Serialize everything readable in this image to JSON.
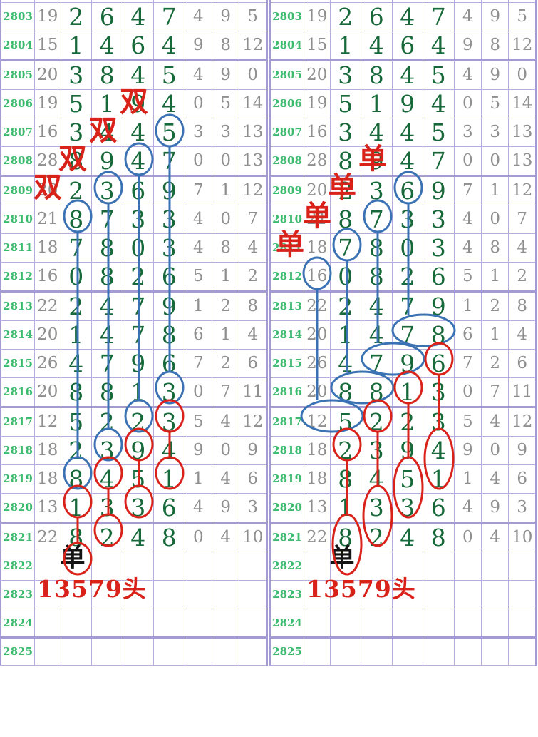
{
  "colors": {
    "grid": "#b6addc",
    "grid_thick": "#a49bd2",
    "period_green": "#3cba6e",
    "digit_green": "#17693a",
    "gray": "#8f8f8f",
    "red": "#d9231a",
    "blue": "#3a72b4",
    "black": "#141414"
  },
  "chart_data": {
    "type": "table",
    "columns": [
      "period",
      "sum",
      "digit1",
      "digit2",
      "digit3",
      "digit4",
      "tail1",
      "tail2",
      "tail3"
    ],
    "rows": [
      {
        "period": "2803",
        "sum": "19",
        "digits": [
          "2",
          "6",
          "4",
          "7"
        ],
        "tails": [
          "4",
          "9",
          "5"
        ]
      },
      {
        "period": "2804",
        "sum": "15",
        "digits": [
          "1",
          "4",
          "6",
          "4"
        ],
        "tails": [
          "9",
          "8",
          "12"
        ]
      },
      {
        "period": "2805",
        "sum": "20",
        "digits": [
          "3",
          "8",
          "4",
          "5"
        ],
        "tails": [
          "4",
          "9",
          "0"
        ]
      },
      {
        "period": "2806",
        "sum": "19",
        "digits": [
          "5",
          "1",
          "9",
          "4"
        ],
        "tails": [
          "0",
          "5",
          "14"
        ]
      },
      {
        "period": "2807",
        "sum": "16",
        "digits": [
          "3",
          "4",
          "4",
          "5"
        ],
        "tails": [
          "3",
          "3",
          "13"
        ]
      },
      {
        "period": "2808",
        "sum": "28",
        "digits": [
          "8",
          "9",
          "4",
          "7"
        ],
        "tails": [
          "0",
          "0",
          "13"
        ]
      },
      {
        "period": "2809",
        "sum": "20",
        "digits": [
          "2",
          "3",
          "6",
          "9"
        ],
        "tails": [
          "7",
          "1",
          "12"
        ]
      },
      {
        "period": "2810",
        "sum": "21",
        "digits": [
          "8",
          "7",
          "3",
          "3"
        ],
        "tails": [
          "4",
          "0",
          "7"
        ]
      },
      {
        "period": "2811",
        "sum": "18",
        "digits": [
          "7",
          "8",
          "0",
          "3"
        ],
        "tails": [
          "4",
          "8",
          "4"
        ]
      },
      {
        "period": "2812",
        "sum": "16",
        "digits": [
          "0",
          "8",
          "2",
          "6"
        ],
        "tails": [
          "5",
          "1",
          "2"
        ]
      },
      {
        "period": "2813",
        "sum": "22",
        "digits": [
          "2",
          "4",
          "7",
          "9"
        ],
        "tails": [
          "1",
          "2",
          "8"
        ]
      },
      {
        "period": "2814",
        "sum": "20",
        "digits": [
          "1",
          "4",
          "7",
          "8"
        ],
        "tails": [
          "6",
          "1",
          "4"
        ]
      },
      {
        "period": "2815",
        "sum": "26",
        "digits": [
          "4",
          "7",
          "9",
          "6"
        ],
        "tails": [
          "7",
          "2",
          "6"
        ]
      },
      {
        "period": "2816",
        "sum": "20",
        "digits": [
          "8",
          "8",
          "1",
          "3"
        ],
        "tails": [
          "0",
          "7",
          "11"
        ]
      },
      {
        "period": "2817",
        "sum": "12",
        "digits": [
          "5",
          "2",
          "2",
          "3"
        ],
        "tails": [
          "5",
          "4",
          "12"
        ]
      },
      {
        "period": "2818",
        "sum": "18",
        "digits": [
          "2",
          "3",
          "9",
          "4"
        ],
        "tails": [
          "9",
          "0",
          "9"
        ]
      },
      {
        "period": "2819",
        "sum": "18",
        "digits": [
          "8",
          "4",
          "5",
          "1"
        ],
        "tails": [
          "1",
          "4",
          "6"
        ]
      },
      {
        "period": "2820",
        "sum": "13",
        "digits": [
          "1",
          "3",
          "3",
          "6"
        ],
        "tails": [
          "4",
          "9",
          "3"
        ]
      },
      {
        "period": "2821",
        "sum": "22",
        "digits": [
          "8",
          "2",
          "4",
          "8"
        ],
        "tails": [
          "0",
          "4",
          "10"
        ]
      },
      {
        "period": "2822",
        "sum": "",
        "digits": [
          "",
          "",
          "",
          ""
        ],
        "tails": [
          "",
          "",
          ""
        ]
      },
      {
        "period": "2823",
        "sum": "",
        "digits": [
          "",
          "",
          "",
          ""
        ],
        "tails": [
          "",
          "",
          ""
        ]
      },
      {
        "period": "2824",
        "sum": "",
        "digits": [
          "",
          "",
          "",
          ""
        ],
        "tails": [
          "",
          "",
          ""
        ]
      },
      {
        "period": "2825",
        "sum": "",
        "digits": [
          "",
          "",
          "",
          ""
        ],
        "tails": [
          "",
          "",
          ""
        ]
      }
    ]
  },
  "thick_row_after": [
    "2804",
    "2808",
    "2812",
    "2816",
    "2820",
    "2824"
  ],
  "panels": [
    {
      "name": "left",
      "parity_labels": [
        {
          "period": "2806",
          "col": "d3",
          "text": "双",
          "color": "red"
        },
        {
          "period": "2807",
          "col": "d2",
          "text": "双",
          "color": "red"
        },
        {
          "period": "2808",
          "col": "d1",
          "text": "双",
          "color": "red"
        },
        {
          "period": "2809",
          "col": "count",
          "text": "双",
          "color": "red"
        },
        {
          "period": "2822",
          "col": "d1",
          "text": "单",
          "color": "black"
        }
      ],
      "footer": {
        "period": "2823",
        "text": "13579头"
      },
      "circles": [
        {
          "type": "cell",
          "period": "2807",
          "col": "d4",
          "color": "blue"
        },
        {
          "type": "cell",
          "period": "2808",
          "col": "d3",
          "color": "blue"
        },
        {
          "type": "cell",
          "period": "2809",
          "col": "d2",
          "color": "blue"
        },
        {
          "type": "cell",
          "period": "2810",
          "col": "d1",
          "color": "blue"
        },
        {
          "type": "cell",
          "period": "2816",
          "col": "d4",
          "color": "blue"
        },
        {
          "type": "cell",
          "period": "2817",
          "col": "d3",
          "color": "blue"
        },
        {
          "type": "cell",
          "period": "2818",
          "col": "d2",
          "color": "blue"
        },
        {
          "type": "cell",
          "period": "2819",
          "col": "d1",
          "color": "blue"
        },
        {
          "type": "cell",
          "period": "2817",
          "col": "d4",
          "color": "red"
        },
        {
          "type": "cell",
          "period": "2818",
          "col": "d3",
          "color": "red"
        },
        {
          "type": "cell",
          "period": "2819",
          "col": "d2",
          "color": "red"
        },
        {
          "type": "cell",
          "period": "2819",
          "col": "d4",
          "color": "red"
        },
        {
          "type": "cell",
          "period": "2820",
          "col": "d1",
          "color": "red"
        },
        {
          "type": "cell",
          "period": "2820",
          "col": "d3",
          "color": "red"
        },
        {
          "type": "cell",
          "period": "2821",
          "col": "d2",
          "color": "red"
        },
        {
          "type": "cell",
          "period": "2822",
          "col": "d1",
          "color": "red"
        }
      ],
      "lines": [
        {
          "col": "d4",
          "from": "2807",
          "to": "2816",
          "color": "blue"
        },
        {
          "col": "d3",
          "from": "2808",
          "to": "2817",
          "color": "blue"
        },
        {
          "col": "d2",
          "from": "2809",
          "to": "2818",
          "color": "blue"
        },
        {
          "col": "d1",
          "from": "2810",
          "to": "2819",
          "color": "blue"
        },
        {
          "col": "d4",
          "from": "2817",
          "to": "2819",
          "color": "red"
        },
        {
          "col": "d3",
          "from": "2818",
          "to": "2820",
          "color": "red"
        },
        {
          "col": "d2",
          "from": "2819",
          "to": "2821",
          "color": "red"
        },
        {
          "col": "d1",
          "from": "2820",
          "to": "2822",
          "color": "red"
        }
      ]
    },
    {
      "name": "right",
      "parity_labels": [
        {
          "period": "2808",
          "col": "d2",
          "text": "单",
          "color": "red"
        },
        {
          "period": "2809",
          "col": "d1",
          "text": "单",
          "color": "red"
        },
        {
          "period": "2810",
          "col": "count",
          "text": "单",
          "color": "red"
        },
        {
          "period": "2811",
          "col": "period",
          "text": "单",
          "color": "red"
        },
        {
          "period": "2822",
          "col": "d1",
          "text": "单",
          "color": "black"
        }
      ],
      "footer": {
        "period": "2823",
        "text": "13579头"
      },
      "circles": [
        {
          "type": "cell",
          "period": "2809",
          "col": "d3",
          "color": "blue"
        },
        {
          "type": "cell",
          "period": "2810",
          "col": "d2",
          "color": "blue"
        },
        {
          "type": "cell",
          "period": "2811",
          "col": "d1",
          "color": "blue"
        },
        {
          "type": "cell",
          "period": "2812",
          "col": "count",
          "color": "blue"
        },
        {
          "type": "wide",
          "period": "2814",
          "cols": [
            "d3",
            "d4"
          ],
          "color": "blue"
        },
        {
          "type": "wide",
          "period": "2815",
          "cols": [
            "d2",
            "d3"
          ],
          "color": "blue"
        },
        {
          "type": "wide",
          "period": "2816",
          "cols": [
            "d1",
            "d2"
          ],
          "color": "blue"
        },
        {
          "type": "wide",
          "period": "2817",
          "cols": [
            "count",
            "d1"
          ],
          "color": "blue"
        },
        {
          "type": "cell",
          "period": "2815",
          "col": "d4",
          "color": "red"
        },
        {
          "type": "cell",
          "period": "2816",
          "col": "d3",
          "color": "red"
        },
        {
          "type": "cell",
          "period": "2817",
          "col": "d2",
          "color": "red"
        },
        {
          "type": "cell",
          "period": "2818",
          "col": "d1",
          "color": "red"
        },
        {
          "type": "tall",
          "col": "d4",
          "periods": [
            "2818",
            "2819"
          ],
          "color": "red"
        },
        {
          "type": "tall",
          "col": "d3",
          "periods": [
            "2819",
            "2820"
          ],
          "color": "red"
        },
        {
          "type": "tall",
          "col": "d2",
          "periods": [
            "2820",
            "2821"
          ],
          "color": "red"
        },
        {
          "type": "tall",
          "col": "d1",
          "periods": [
            "2821",
            "2822"
          ],
          "color": "red"
        }
      ],
      "lines": [
        {
          "col": "d3",
          "from": "2809",
          "to": "2814",
          "color": "blue"
        },
        {
          "col": "d2",
          "from": "2810",
          "to": "2815",
          "color": "blue"
        },
        {
          "col": "d1",
          "from": "2811",
          "to": "2816",
          "color": "blue"
        },
        {
          "col": "count",
          "from": "2812",
          "to": "2817",
          "color": "blue"
        },
        {
          "col": "d4",
          "from": "2815",
          "to": "2818",
          "color": "red"
        },
        {
          "col": "d3",
          "from": "2816",
          "to": "2819",
          "color": "red"
        },
        {
          "col": "d2",
          "from": "2817",
          "to": "2820",
          "color": "red"
        },
        {
          "col": "d1",
          "from": "2818",
          "to": "2821",
          "color": "red"
        }
      ]
    }
  ]
}
